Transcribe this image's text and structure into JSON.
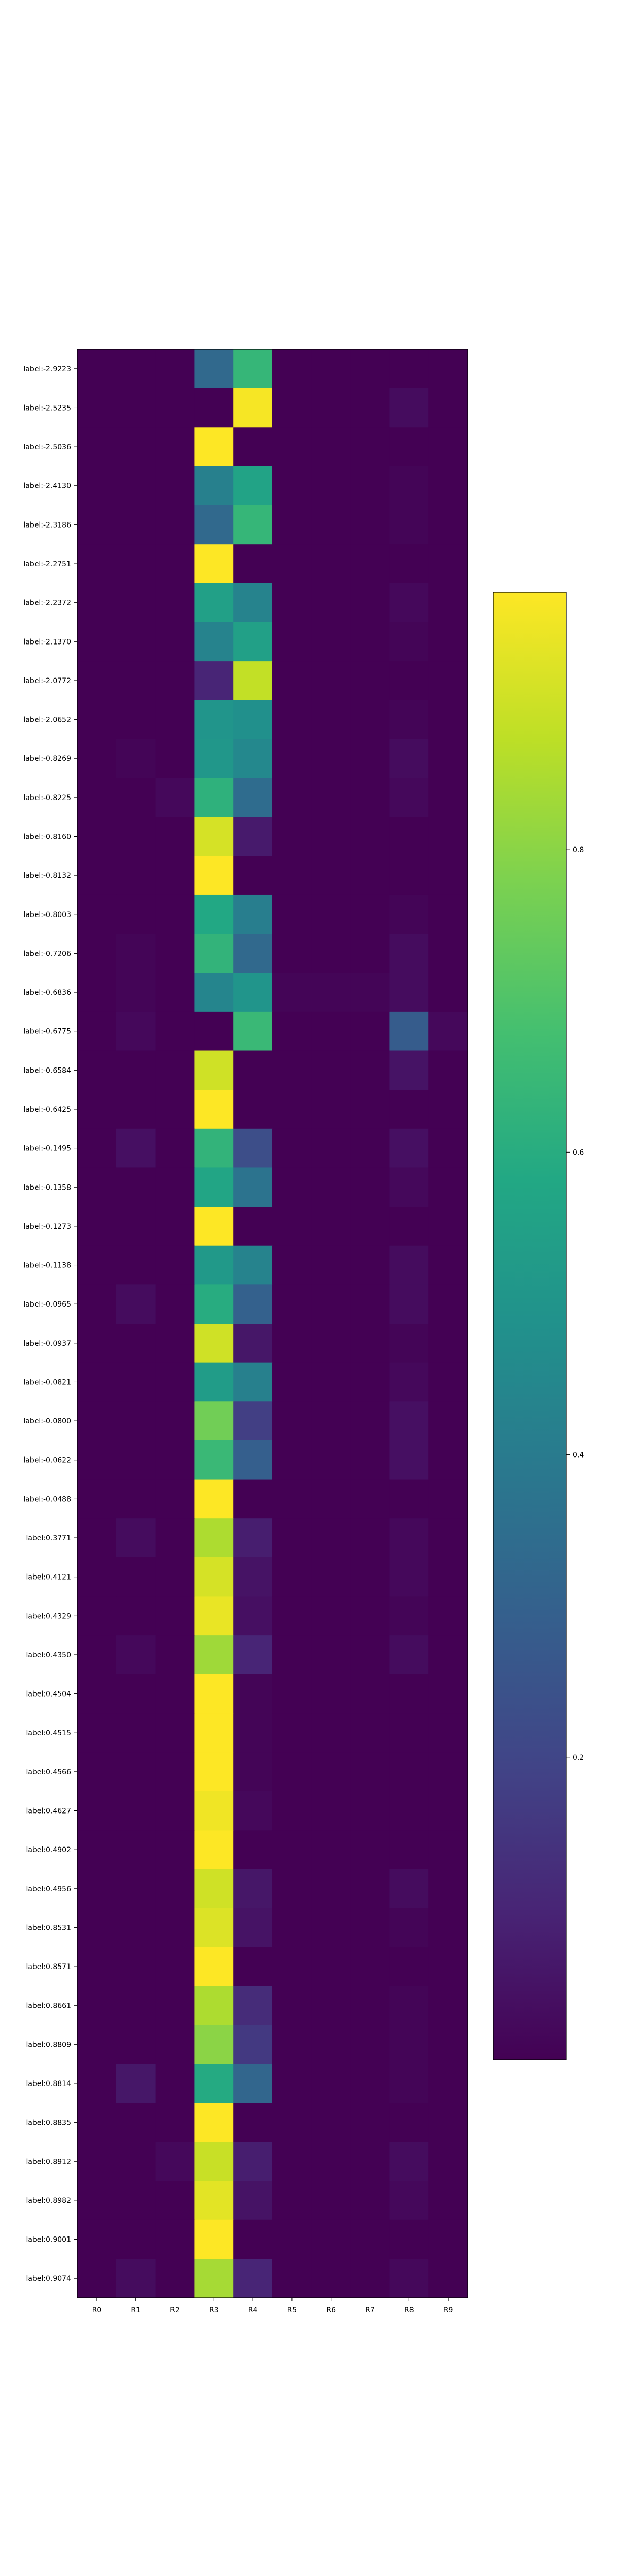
{
  "chart_data": {
    "type": "heatmap",
    "title": "",
    "xlabel": "",
    "ylabel": "",
    "colormap": "viridis",
    "value_range": [
      0,
      0.97
    ],
    "grid": false,
    "colorbar": {
      "placement": "right",
      "ticks": [
        0.2,
        0.4,
        0.6,
        0.8
      ],
      "tick_labels": [
        "0.2",
        "0.4",
        "0.6",
        "0.8"
      ]
    },
    "columns": [
      "R0",
      "R1",
      "R2",
      "R3",
      "R4",
      "R5",
      "R6",
      "R7",
      "R8",
      "R9"
    ],
    "rows": [
      "label:-2.9223",
      "label:-2.5235",
      "label:-2.5036",
      "label:-2.4130",
      "label:-2.3186",
      "label:-2.2751",
      "label:-2.2372",
      "label:-2.1370",
      "label:-2.0772",
      "label:-2.0652",
      "label:-0.8269",
      "label:-0.8225",
      "label:-0.8160",
      "label:-0.8132",
      "label:-0.8003",
      "label:-0.7206",
      "label:-0.6836",
      "label:-0.6775",
      "label:-0.6584",
      "label:-0.6425",
      "label:-0.1495",
      "label:-0.1358",
      "label:-0.1273",
      "label:-0.1138",
      "label:-0.0965",
      "label:-0.0937",
      "label:-0.0821",
      "label:-0.0800",
      "label:-0.0622",
      "label:-0.0488",
      "label:0.3771",
      "label:0.4121",
      "label:0.4329",
      "label:0.4350",
      "label:0.4504",
      "label:0.4515",
      "label:0.4566",
      "label:0.4627",
      "label:0.4902",
      "label:0.4956",
      "label:0.8531",
      "label:0.8571",
      "label:0.8661",
      "label:0.8809",
      "label:0.8814",
      "label:0.8835",
      "label:0.8912",
      "label:0.8982",
      "label:0.9001",
      "label:0.9074"
    ],
    "values": [
      [
        0.0,
        0.0,
        0.0,
        0.33,
        0.64,
        0.0,
        0.0,
        0.0,
        0.0,
        0.0
      ],
      [
        0.0,
        0.0,
        0.0,
        0.0,
        0.96,
        0.0,
        0.0,
        0.0,
        0.03,
        0.0
      ],
      [
        0.0,
        0.0,
        0.0,
        0.97,
        0.0,
        0.0,
        0.0,
        0.0,
        0.0,
        0.0
      ],
      [
        0.0,
        0.0,
        0.0,
        0.42,
        0.56,
        0.0,
        0.0,
        0.0,
        0.01,
        0.0
      ],
      [
        0.0,
        0.0,
        0.0,
        0.33,
        0.64,
        0.0,
        0.0,
        0.0,
        0.01,
        0.0
      ],
      [
        0.0,
        0.0,
        0.0,
        0.97,
        0.0,
        0.0,
        0.0,
        0.0,
        0.0,
        0.0
      ],
      [
        0.0,
        0.0,
        0.0,
        0.55,
        0.43,
        0.0,
        0.0,
        0.0,
        0.02,
        0.0
      ],
      [
        0.0,
        0.0,
        0.0,
        0.43,
        0.55,
        0.0,
        0.0,
        0.0,
        0.01,
        0.0
      ],
      [
        0.0,
        0.0,
        0.0,
        0.1,
        0.88,
        0.0,
        0.0,
        0.0,
        0.0,
        0.0
      ],
      [
        0.0,
        0.0,
        0.0,
        0.5,
        0.48,
        0.0,
        0.0,
        0.0,
        0.01,
        0.0
      ],
      [
        0.0,
        0.01,
        0.0,
        0.51,
        0.45,
        0.0,
        0.0,
        0.0,
        0.03,
        0.0
      ],
      [
        0.0,
        0.0,
        0.02,
        0.62,
        0.34,
        0.0,
        0.0,
        0.0,
        0.02,
        0.0
      ],
      [
        0.0,
        0.0,
        0.0,
        0.91,
        0.07,
        0.0,
        0.0,
        0.0,
        0.0,
        0.0
      ],
      [
        0.0,
        0.0,
        0.0,
        0.97,
        0.0,
        0.0,
        0.0,
        0.0,
        0.0,
        0.0
      ],
      [
        0.0,
        0.0,
        0.0,
        0.58,
        0.41,
        0.0,
        0.0,
        0.0,
        0.01,
        0.0
      ],
      [
        0.0,
        0.01,
        0.0,
        0.63,
        0.33,
        0.0,
        0.0,
        0.0,
        0.03,
        0.0
      ],
      [
        0.0,
        0.01,
        0.0,
        0.44,
        0.5,
        0.01,
        0.01,
        0.01,
        0.03,
        0.0
      ],
      [
        0.0,
        0.02,
        0.0,
        0.0,
        0.65,
        0.0,
        0.0,
        0.0,
        0.28,
        0.02
      ],
      [
        0.0,
        0.0,
        0.0,
        0.9,
        0.0,
        0.0,
        0.0,
        0.0,
        0.05,
        0.0
      ],
      [
        0.0,
        0.0,
        0.0,
        0.97,
        0.0,
        0.0,
        0.0,
        0.0,
        0.0,
        0.0
      ],
      [
        0.0,
        0.04,
        0.0,
        0.63,
        0.23,
        0.0,
        0.0,
        0.0,
        0.04,
        0.0
      ],
      [
        0.0,
        0.0,
        0.0,
        0.57,
        0.37,
        0.0,
        0.0,
        0.0,
        0.02,
        0.0
      ],
      [
        0.0,
        0.0,
        0.0,
        0.97,
        0.0,
        0.0,
        0.0,
        0.0,
        0.0,
        0.0
      ],
      [
        0.0,
        0.0,
        0.0,
        0.52,
        0.43,
        0.0,
        0.0,
        0.0,
        0.03,
        0.0
      ],
      [
        0.0,
        0.03,
        0.0,
        0.6,
        0.3,
        0.0,
        0.0,
        0.0,
        0.03,
        0.0
      ],
      [
        0.0,
        0.0,
        0.0,
        0.9,
        0.06,
        0.0,
        0.0,
        0.0,
        0.01,
        0.0
      ],
      [
        0.0,
        0.0,
        0.0,
        0.53,
        0.42,
        0.0,
        0.0,
        0.0,
        0.02,
        0.0
      ],
      [
        0.0,
        0.0,
        0.0,
        0.76,
        0.18,
        0.0,
        0.0,
        0.0,
        0.04,
        0.0
      ],
      [
        0.0,
        0.0,
        0.0,
        0.65,
        0.29,
        0.0,
        0.0,
        0.0,
        0.04,
        0.0
      ],
      [
        0.0,
        0.0,
        0.0,
        0.97,
        0.0,
        0.0,
        0.0,
        0.0,
        0.0,
        0.0
      ],
      [
        0.0,
        0.03,
        0.0,
        0.85,
        0.08,
        0.0,
        0.0,
        0.0,
        0.02,
        0.0
      ],
      [
        0.0,
        0.0,
        0.0,
        0.91,
        0.05,
        0.0,
        0.0,
        0.0,
        0.02,
        0.0
      ],
      [
        0.0,
        0.0,
        0.0,
        0.94,
        0.04,
        0.0,
        0.0,
        0.0,
        0.01,
        0.0
      ],
      [
        0.0,
        0.02,
        0.0,
        0.83,
        0.1,
        0.0,
        0.0,
        0.0,
        0.03,
        0.0
      ],
      [
        0.0,
        0.0,
        0.0,
        0.97,
        0.01,
        0.0,
        0.0,
        0.0,
        0.0,
        0.0
      ],
      [
        0.0,
        0.0,
        0.0,
        0.97,
        0.01,
        0.0,
        0.0,
        0.0,
        0.0,
        0.0
      ],
      [
        0.0,
        0.0,
        0.0,
        0.97,
        0.01,
        0.0,
        0.0,
        0.0,
        0.0,
        0.0
      ],
      [
        0.0,
        0.0,
        0.0,
        0.95,
        0.02,
        0.0,
        0.0,
        0.0,
        0.0,
        0.0
      ],
      [
        0.0,
        0.0,
        0.0,
        0.97,
        0.0,
        0.0,
        0.0,
        0.0,
        0.0,
        0.0
      ],
      [
        0.0,
        0.0,
        0.0,
        0.9,
        0.06,
        0.0,
        0.0,
        0.0,
        0.03,
        0.0
      ],
      [
        0.0,
        0.0,
        0.0,
        0.92,
        0.05,
        0.0,
        0.0,
        0.0,
        0.01,
        0.0
      ],
      [
        0.0,
        0.0,
        0.0,
        0.97,
        0.0,
        0.0,
        0.0,
        0.0,
        0.0,
        0.0
      ],
      [
        0.0,
        0.0,
        0.0,
        0.85,
        0.12,
        0.0,
        0.0,
        0.0,
        0.01,
        0.0
      ],
      [
        0.0,
        0.0,
        0.0,
        0.8,
        0.16,
        0.0,
        0.0,
        0.0,
        0.01,
        0.0
      ],
      [
        0.0,
        0.06,
        0.0,
        0.59,
        0.32,
        0.0,
        0.0,
        0.0,
        0.01,
        0.0
      ],
      [
        0.0,
        0.0,
        0.0,
        0.97,
        0.0,
        0.0,
        0.0,
        0.0,
        0.0,
        0.0
      ],
      [
        0.0,
        0.0,
        0.02,
        0.89,
        0.08,
        0.0,
        0.0,
        0.0,
        0.03,
        0.0
      ],
      [
        0.0,
        0.0,
        0.0,
        0.93,
        0.05,
        0.0,
        0.0,
        0.0,
        0.02,
        0.0
      ],
      [
        0.0,
        0.0,
        0.0,
        0.97,
        0.0,
        0.0,
        0.0,
        0.0,
        0.0,
        0.0
      ],
      [
        0.0,
        0.03,
        0.0,
        0.84,
        0.1,
        0.0,
        0.0,
        0.0,
        0.02,
        0.0
      ]
    ]
  }
}
